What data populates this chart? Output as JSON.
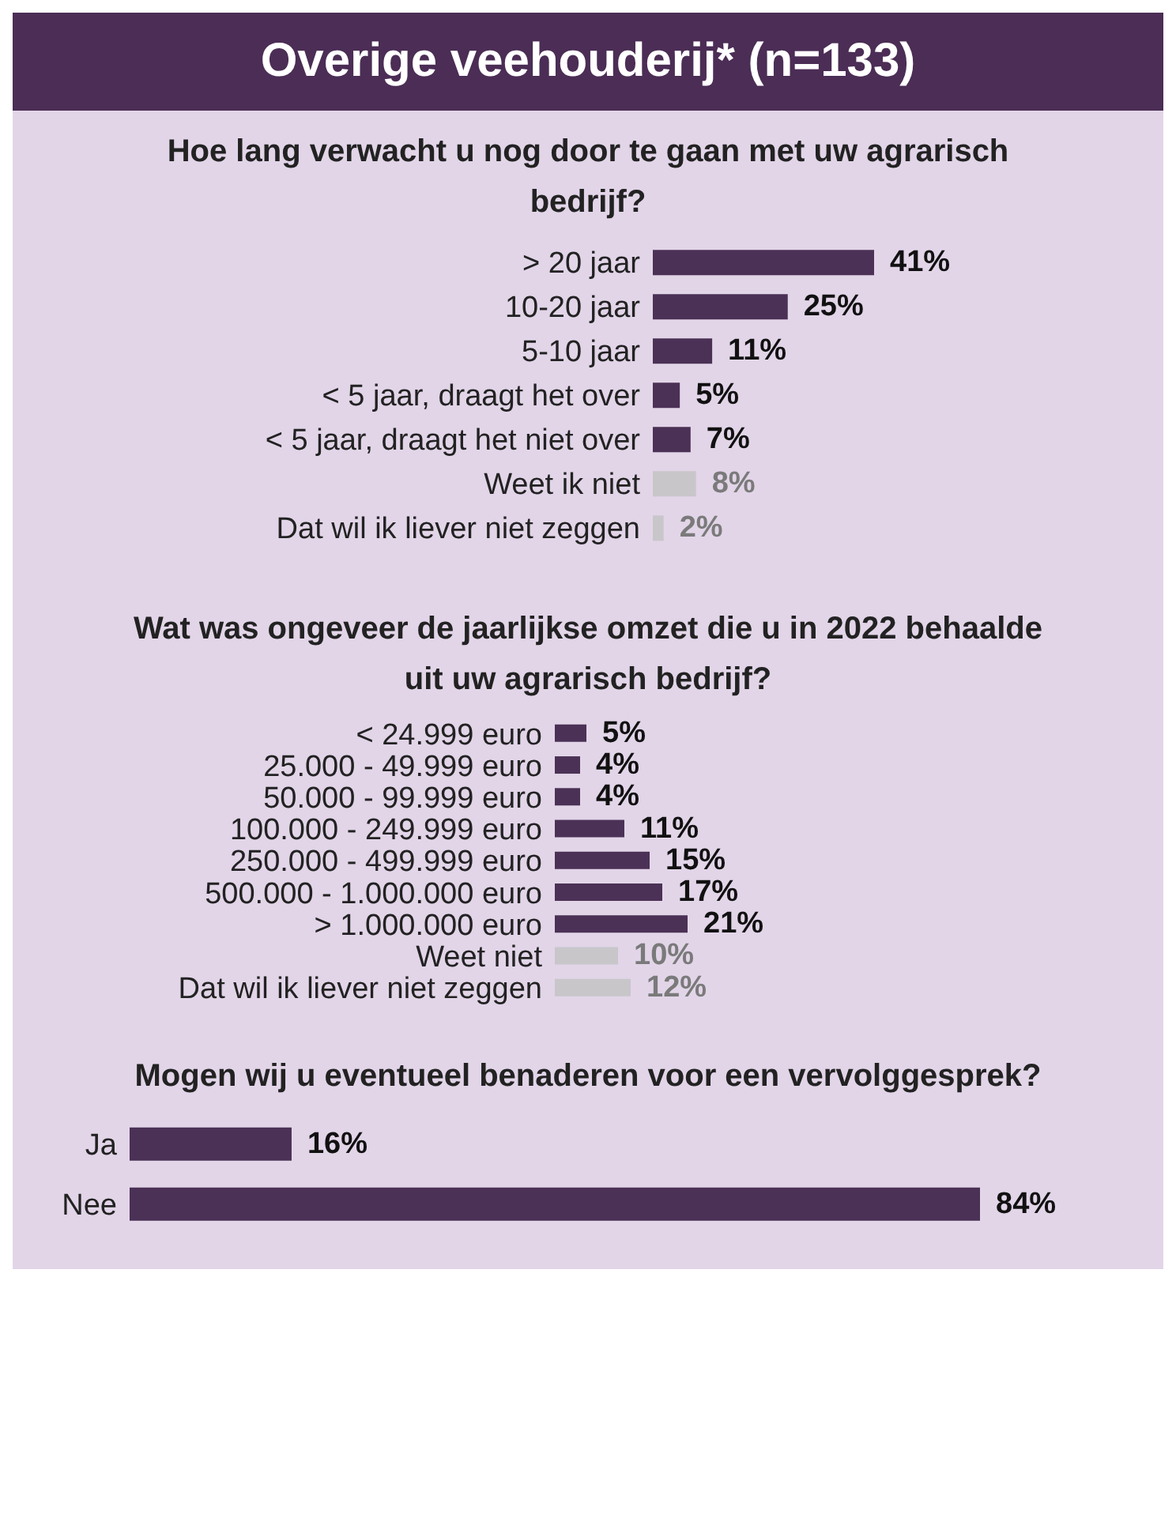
{
  "chart_data": [
    {
      "type": "bar",
      "orientation": "horizontal",
      "annotations": [
        "Overige veehouderij* (n=133)"
      ],
      "title": "Hoe lang verwacht u nog door te gaan met uw agrarisch bedrijf?",
      "categories": [
        "> 20 jaar",
        "10-20 jaar",
        "5-10 jaar",
        "< 5 jaar, draagt het over",
        "< 5 jaar, draagt het niet over",
        "Weet ik niet",
        "Dat wil ik liever niet zeggen"
      ],
      "values": [
        41,
        25,
        11,
        5,
        7,
        8,
        2
      ],
      "value_labels": [
        "41%",
        "25%",
        "11%",
        "5%",
        "7%",
        "8%",
        "2%"
      ],
      "colors": [
        "#4b3156",
        "#4b3156",
        "#4b3156",
        "#4b3156",
        "#4b3156",
        "#c8c6c9",
        "#c8c6c9"
      ]
    },
    {
      "type": "bar",
      "orientation": "horizontal",
      "title": "Wat was ongeveer de jaarlijkse omzet die u in 2022 behaalde uit uw agrarisch bedrijf?",
      "categories": [
        "< 24.999 euro",
        "25.000 - 49.999 euro",
        "50.000 - 99.999 euro",
        "100.000 - 249.999 euro",
        "250.000 - 499.999 euro",
        "500.000 - 1.000.000 euro",
        "> 1.000.000 euro",
        "Weet niet",
        "Dat wil ik liever niet zeggen"
      ],
      "values": [
        5,
        4,
        4,
        11,
        15,
        17,
        21,
        10,
        12
      ],
      "value_labels": [
        "5%",
        "4%",
        "4%",
        "11%",
        "15%",
        "17%",
        "21%",
        "10%",
        "12%"
      ],
      "colors": [
        "#4b3156",
        "#4b3156",
        "#4b3156",
        "#4b3156",
        "#4b3156",
        "#4b3156",
        "#4b3156",
        "#c8c6c9",
        "#c8c6c9"
      ]
    },
    {
      "type": "bar",
      "orientation": "horizontal",
      "title": "Mogen wij u eventueel benaderen voor een vervolggesprek?",
      "categories": [
        "Ja",
        "Nee"
      ],
      "values": [
        16,
        84
      ],
      "value_labels": [
        "16%",
        "84%"
      ],
      "colors": [
        "#4b3156",
        "#4b3156"
      ]
    }
  ]
}
